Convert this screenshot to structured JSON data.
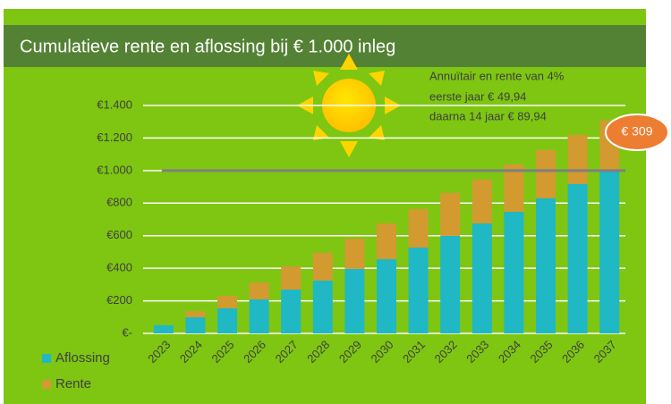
{
  "chart_data": {
    "type": "stacked_bar",
    "title": "Cumulatieve rente en aflossing bij € 1.000 inleg",
    "annotation": [
      "Annuïtair en rente van 4%",
      "eerste jaar € 49,94",
      "daarna 14 jaar € 89,94"
    ],
    "callout": "€ 309",
    "categories": [
      "2023",
      "2024",
      "2025",
      "2026",
      "2027",
      "2028",
      "2029",
      "2030",
      "2031",
      "2032",
      "2033",
      "2034",
      "2035",
      "2036",
      "2037"
    ],
    "series": [
      {
        "name": "Aflossing",
        "color": "#1fb8c4",
        "values": [
          50,
          99,
          154,
          209,
          269,
          324,
          396,
          456,
          527,
          599,
          676,
          747,
          830,
          918,
          1000
        ]
      },
      {
        "name": "Rente",
        "color": "#d39a30",
        "values": [
          0,
          38,
          77,
          104,
          143,
          171,
          186,
          220,
          237,
          264,
          269,
          291,
          296,
          302,
          309
        ]
      }
    ],
    "ylim": [
      0,
      1400
    ],
    "yticks": [
      {
        "value": 0,
        "label": "€-"
      },
      {
        "value": 200,
        "label": "€200"
      },
      {
        "value": 400,
        "label": "€400"
      },
      {
        "value": 600,
        "label": "€600"
      },
      {
        "value": 800,
        "label": "€800"
      },
      {
        "value": 1000,
        "label": "€1.000"
      },
      {
        "value": 1200,
        "label": "€1.200"
      },
      {
        "value": 1400,
        "label": "€1.400"
      }
    ],
    "grid": true,
    "reference_line": 1000,
    "reference_color": "#7f7f7f"
  }
}
